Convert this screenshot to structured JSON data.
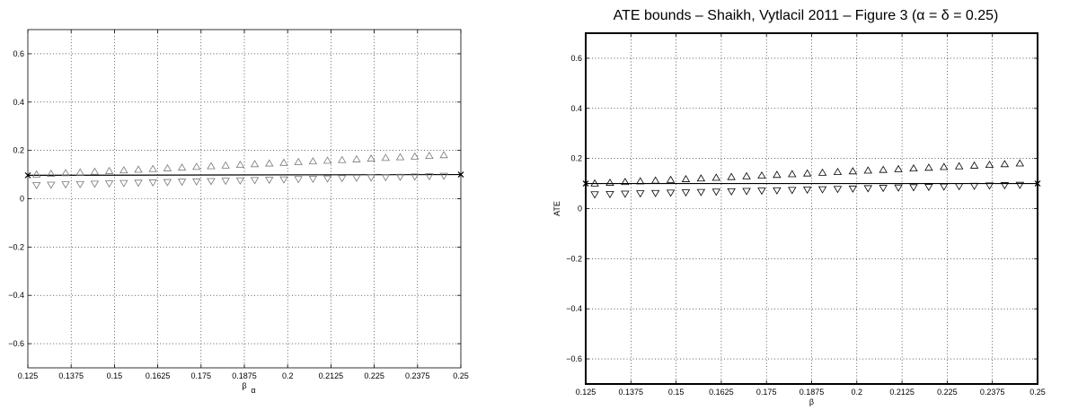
{
  "chart_data": [
    {
      "type": "scatter",
      "title": "",
      "xlabel": "β",
      "xlabel_sub": "α",
      "ylabel": "",
      "xlim": [
        0.125,
        0.25
      ],
      "ylim": [
        -0.7,
        0.7
      ],
      "xticks": [
        0.125,
        0.1375,
        0.15,
        0.1625,
        0.175,
        0.1875,
        0.2,
        0.2125,
        0.225,
        0.2375,
        0.25
      ],
      "xtick_labels": [
        "0.125",
        "0.1375",
        "0.15",
        "0.1625",
        "0.175",
        "0.1875",
        "0.2",
        "0.2125",
        "0.225",
        "0.2375",
        "0.25"
      ],
      "yticks": [
        -0.6,
        -0.4,
        -0.2,
        0,
        0.2,
        0.4,
        0.6
      ],
      "ytick_labels": [
        "−0.6",
        "−0.4",
        "−0.2",
        "0",
        "0.2",
        "0.4",
        "0.6"
      ],
      "grid": true,
      "line_color": "#000000",
      "marker_color": "#777777",
      "x_start": 0.1275,
      "x_step": 0.0042,
      "n_points": 29,
      "upper_bound": {
        "marker": "triangle-up",
        "y_start": 0.1,
        "y_end": 0.18
      },
      "lower_bound": {
        "marker": "triangle-down",
        "y_start": 0.057,
        "y_end": 0.095
      },
      "reference_line": {
        "x": [
          0.125,
          0.25
        ],
        "y": [
          0.097,
          0.1
        ]
      },
      "endpoint_markers": {
        "marker": "x",
        "x": [
          0.125,
          0.25
        ],
        "y": [
          0.097,
          0.1
        ]
      }
    },
    {
      "type": "scatter",
      "title": "ATE bounds – Shaikh, Vytlacil 2011 – Figure 3 (α = δ = 0.25)",
      "xlabel": "β",
      "xlabel_sub": "",
      "ylabel": "ATE",
      "xlim": [
        0.125,
        0.25
      ],
      "ylim": [
        -0.7,
        0.7
      ],
      "xticks": [
        0.125,
        0.1375,
        0.15,
        0.1625,
        0.175,
        0.1875,
        0.2,
        0.2125,
        0.225,
        0.2375,
        0.25
      ],
      "xtick_labels": [
        "0.125",
        "0.1375",
        "0.15",
        "0.1625",
        "0.175",
        "0.1875",
        "0.2",
        "0.2125",
        "0.225",
        "0.2375",
        "0.25"
      ],
      "yticks": [
        -0.6,
        -0.4,
        -0.2,
        0,
        0.2,
        0.4,
        0.6
      ],
      "ytick_labels": [
        "−0.6",
        "−0.4",
        "−0.2",
        "0",
        "0.2",
        "0.4",
        "0.6"
      ],
      "grid": true,
      "line_color": "#000000",
      "marker_color": "#000000",
      "x_start": 0.1275,
      "x_step": 0.0042,
      "n_points": 29,
      "upper_bound": {
        "marker": "triangle-up",
        "y_start": 0.1,
        "y_end": 0.18
      },
      "lower_bound": {
        "marker": "triangle-down",
        "y_start": 0.057,
        "y_end": 0.095
      },
      "reference_line": {
        "x": [
          0.125,
          0.25
        ],
        "y": [
          0.1,
          0.1
        ]
      },
      "endpoint_markers": {
        "marker": "x",
        "x": [
          0.125,
          0.25
        ],
        "y": [
          0.1,
          0.1
        ]
      }
    }
  ]
}
